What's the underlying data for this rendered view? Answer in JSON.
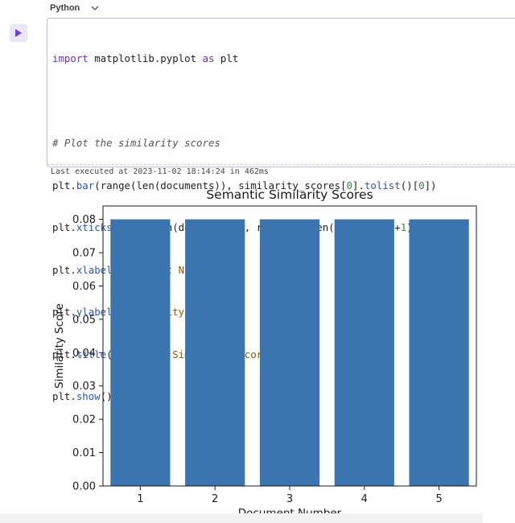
{
  "cell": {
    "language": "Python",
    "run_label": "Run cell",
    "code_lines": [
      "import matplotlib.pyplot as plt",
      "",
      "# Plot the similarity scores",
      "plt.bar(range(len(documents)), similarity_scores[0].tolist()[0])",
      "plt.xticks(range(len(documents)), range(1, len(documents)+1))",
      "plt.xlabel('Document Number')",
      "plt.ylabel('Similarity Score')",
      "plt.title('Semantic Similarity Scores')",
      "plt.show()"
    ],
    "last_executed": "Last executed at 2023-11-02 18:14:24 in 462ms"
  },
  "colors": {
    "bar": "#3b75af",
    "cell_border": "#c7b8ec",
    "run_icon": "#6d3fd8"
  },
  "chart_data": {
    "type": "bar",
    "title": "Semantic Similarity Scores",
    "xlabel": "Document Number",
    "ylabel": "Similarity Score",
    "categories": [
      "1",
      "2",
      "3",
      "4",
      "5"
    ],
    "values": [
      0.08,
      0.08,
      0.08,
      0.08,
      0.08
    ],
    "ylim": [
      0,
      0.084
    ],
    "yticks": [
      "0.00",
      "0.01",
      "0.02",
      "0.03",
      "0.04",
      "0.05",
      "0.06",
      "0.07",
      "0.08"
    ],
    "grid": false,
    "legend": false
  }
}
